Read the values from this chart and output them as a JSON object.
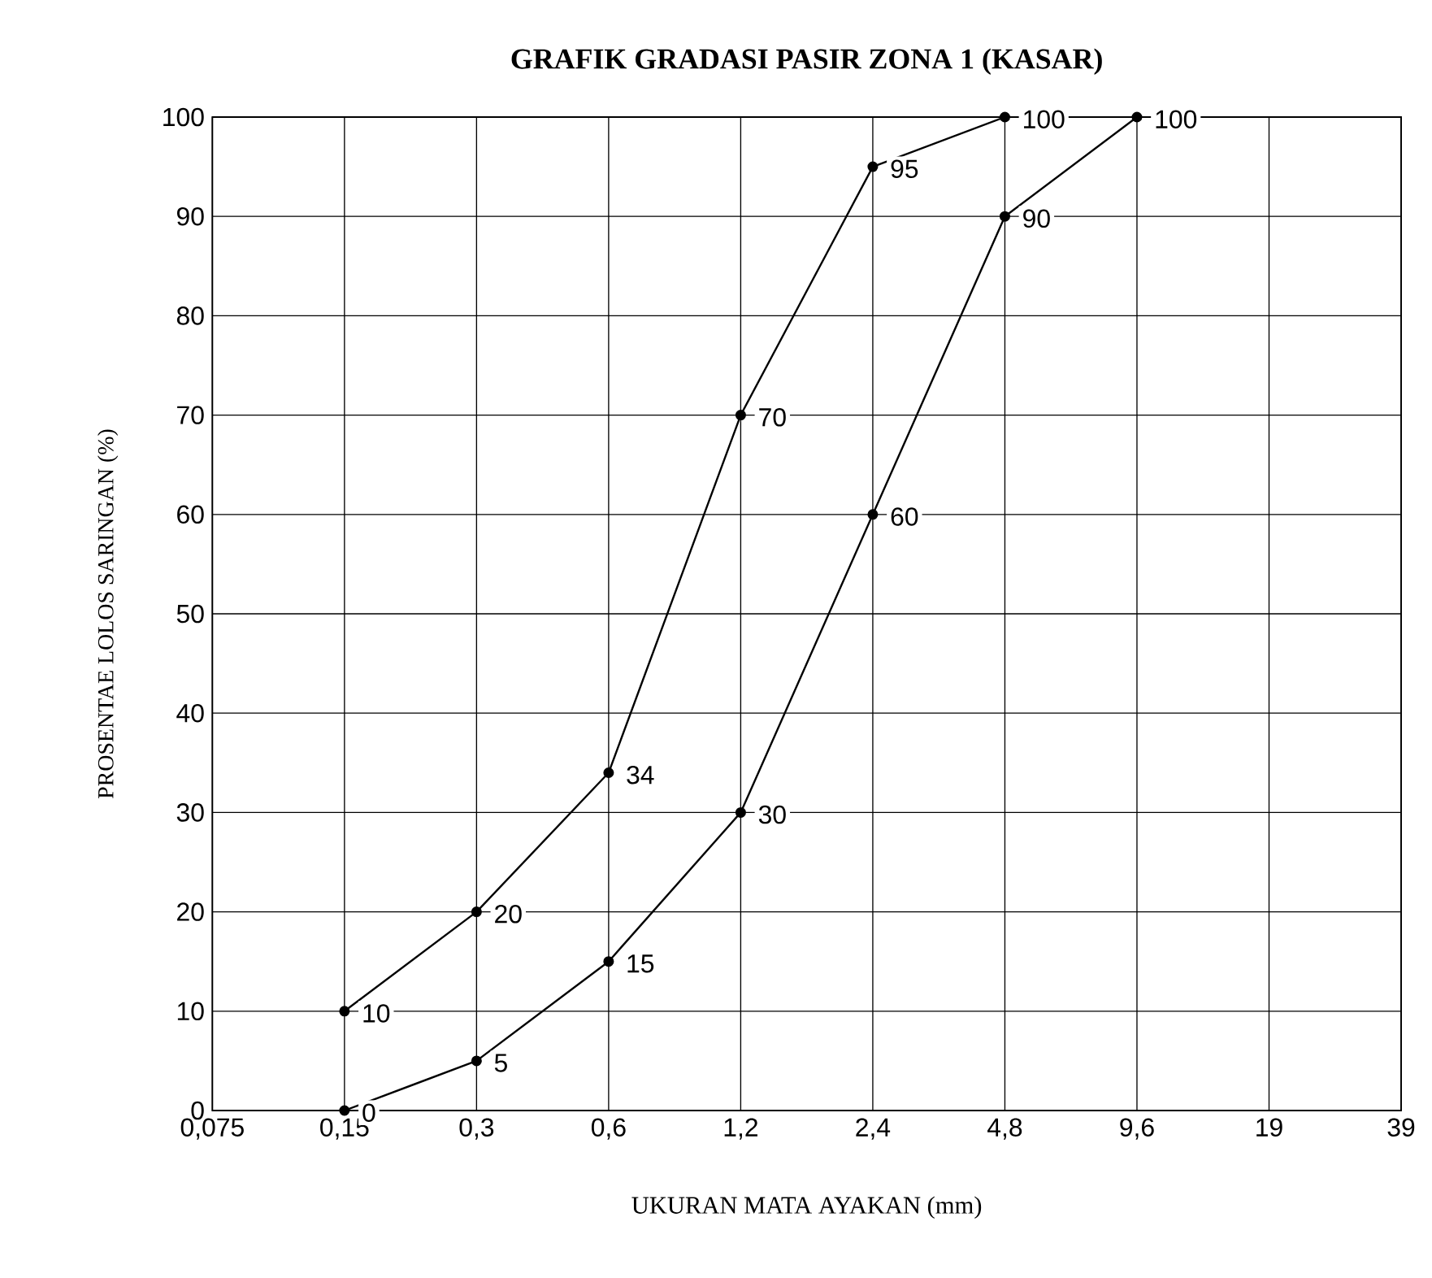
{
  "chart_data": {
    "type": "line",
    "title": "GRAFIK GRADASI PASIR ZONA 1 (KASAR)",
    "xlabel": "UKURAN MATA AYAKAN (mm)",
    "ylabel": "PROSENTAE LOLOS SARINGAN (%)",
    "categories": [
      "0,075",
      "0,15",
      "0,3",
      "0,6",
      "1,2",
      "2,4",
      "4,8",
      "9,6",
      "19",
      "39"
    ],
    "series": [
      {
        "color": "#000000",
        "values": [
          null,
          10,
          20,
          34,
          70,
          95,
          100,
          null,
          null,
          null
        ]
      },
      {
        "color": "#000000",
        "values": [
          null,
          0,
          5,
          15,
          30,
          60,
          90,
          100,
          null,
          null
        ]
      }
    ],
    "ylim": [
      0,
      100
    ],
    "yticks": [
      0,
      10,
      20,
      30,
      40,
      50,
      60,
      70,
      80,
      90,
      100
    ],
    "grid": true,
    "marker": "circle",
    "line_style": "solid",
    "data_labels": true
  }
}
